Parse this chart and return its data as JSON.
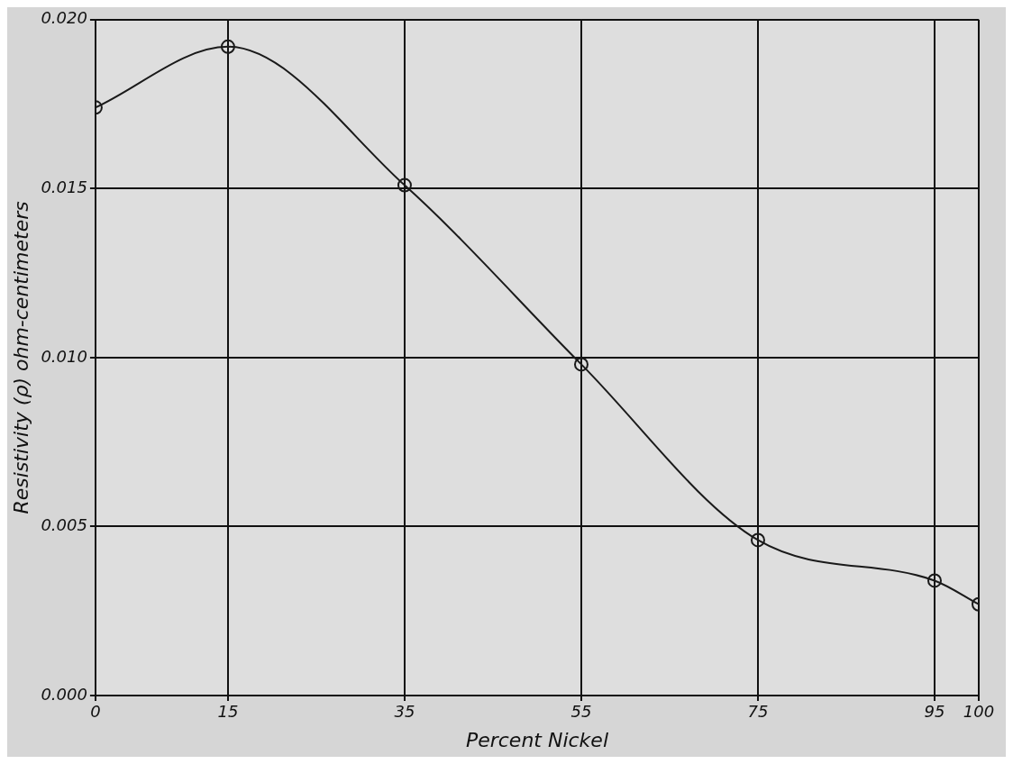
{
  "chart_data": {
    "type": "line",
    "xlabel": "Percent Nickel",
    "ylabel": "Resistivity (ρ) ohm-centimeters",
    "x": [
      0,
      15,
      35,
      55,
      75,
      95,
      100
    ],
    "series": [
      {
        "color": "#1a1a1a",
        "values": [
          0.0174,
          0.0192,
          0.0151,
          0.0098,
          0.0046,
          0.0034,
          0.0027
        ]
      }
    ],
    "xlim": [
      0,
      100
    ],
    "xticks": [
      0,
      15,
      35,
      55,
      75,
      95,
      100
    ],
    "ylim": [
      0,
      0.02
    ],
    "yticks": [
      {
        "value": 0,
        "label": "0.000"
      },
      {
        "value": 0.005,
        "label": "0.005"
      },
      {
        "value": 0.01,
        "label": "0.010"
      },
      {
        "value": 0.015,
        "label": "0.015"
      },
      {
        "value": 0.02,
        "label": "0.020"
      }
    ],
    "grid": true,
    "marker": "circle",
    "line_style": "solid",
    "legend": false
  }
}
